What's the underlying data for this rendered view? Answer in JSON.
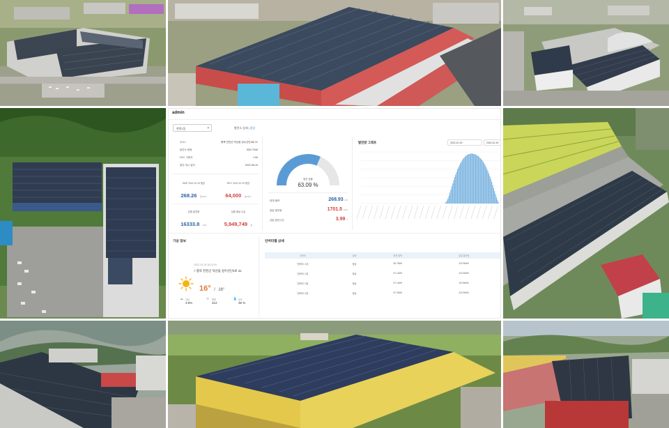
{
  "dashboard": {
    "user": "admin",
    "plant_select": "천련1동",
    "filter_tabs": {
      "prefix": "발전소 상세 |",
      "active": "경상"
    },
    "plant_info": {
      "title": "주소1",
      "address": "충북 천천군 덕산읍 성수산단3로 31",
      "rows": [
        {
          "key": "발전소 용량",
          "value": "925.77kW"
        },
        {
          "key": "REC 가중치",
          "value": "1.50"
        },
        {
          "key": "발전 개시 일자",
          "value": "2022-08-19"
        }
      ]
    },
    "prices": [
      {
        "label": "SMP 2022.10.19 평균",
        "value": "268.26",
        "unit": "원/kWh"
      },
      {
        "label": "REC 2022.10.19 평균",
        "value": "64,000",
        "unit": "원/REC"
      }
    ],
    "totals": [
      {
        "label": "당월 발전량",
        "value": "16333.8",
        "unit": "kWh"
      },
      {
        "label": "당월 예상 수입",
        "value": "5,949,749",
        "unit": "원"
      }
    ],
    "gauge": {
      "label": "발전 효율",
      "value_text": "63.09 %",
      "fraction": 0.6309,
      "fill": "#5b9bd5",
      "track": "#e6e6e6"
    },
    "today": [
      {
        "label": "현재 출력",
        "value": "268.93",
        "unit": "kW"
      },
      {
        "label": "일일 발전량",
        "value": "1701.5",
        "unit": "kWh"
      },
      {
        "label": "금일 발전시간",
        "value": "3.99",
        "unit": "h"
      }
    ],
    "graph": {
      "title": "발전량 그래프",
      "date_from": "2022-10-19",
      "date_to": "2022-10-19"
    },
    "weather": {
      "title": "기상 정보",
      "timestamp": "2022.10.19 16:22:04",
      "location": "충북 천천군 덕산읍 성수산단3로 31",
      "temp": "16°",
      "temp_sep": "/",
      "temp_feel": "16°",
      "icon": "sun-icon",
      "stats": [
        {
          "icon": "cloud-icon",
          "label": "흐림",
          "value": "3.8%"
        },
        {
          "icon": "wind-icon",
          "label": "풍향",
          "value": "312"
        },
        {
          "icon": "drop-icon",
          "label": "습도",
          "value": "35 %"
        }
      ]
    },
    "inverters": {
      "title": "인버터별 상세",
      "headers": [
        "인버터",
        "상태",
        "현재 출력",
        "금일 발전량"
      ],
      "rows": [
        [
          "인버터1 1호",
          "정상",
          "66.75kW",
          "423.9kWh"
        ],
        [
          "인버터1 2호",
          "정상",
          "67.10kW",
          "423.9kWh"
        ],
        [
          "인버터1 3호",
          "정상",
          "67.13kW",
          "423.8kWh"
        ],
        [
          "인버터1 4호",
          "정상",
          "67.25kW",
          "423.9kWh"
        ]
      ]
    }
  },
  "chart_data": {
    "type": "bar",
    "title": "발전량 그래프",
    "bar_color": "#7ab4e0",
    "series": [
      {
        "values": [
          0,
          0,
          0,
          0,
          0,
          0,
          0,
          0,
          0,
          0,
          0,
          0,
          0,
          0,
          0,
          0,
          0,
          0,
          0,
          0,
          0,
          0,
          0,
          0,
          0,
          0,
          0,
          0,
          0,
          0,
          0,
          0,
          0,
          0,
          0,
          0,
          0,
          0,
          0,
          0,
          0,
          0,
          0,
          0,
          0,
          0,
          0,
          0,
          0,
          0,
          0,
          0,
          0,
          0,
          0,
          0,
          0,
          0,
          0,
          0,
          0,
          0,
          0,
          0,
          0,
          0,
          0,
          0,
          0,
          0,
          0,
          0,
          0,
          0,
          0,
          0,
          0,
          0,
          0,
          0,
          0,
          0,
          0,
          0,
          0,
          0,
          0,
          0,
          1,
          3,
          6,
          10,
          15,
          21,
          27,
          33,
          39,
          45,
          51,
          56,
          61,
          66,
          70,
          74,
          78,
          81,
          84,
          87,
          89,
          91,
          93,
          94,
          95,
          96,
          96,
          97,
          97,
          97,
          96,
          96,
          95,
          94,
          93,
          92,
          90,
          88,
          86,
          84,
          81,
          78,
          75,
          71,
          67,
          63,
          58,
          53,
          48,
          42,
          36,
          30,
          24,
          18,
          12,
          7,
          3
        ]
      }
    ],
    "ylim": [
      0,
      100
    ]
  }
}
